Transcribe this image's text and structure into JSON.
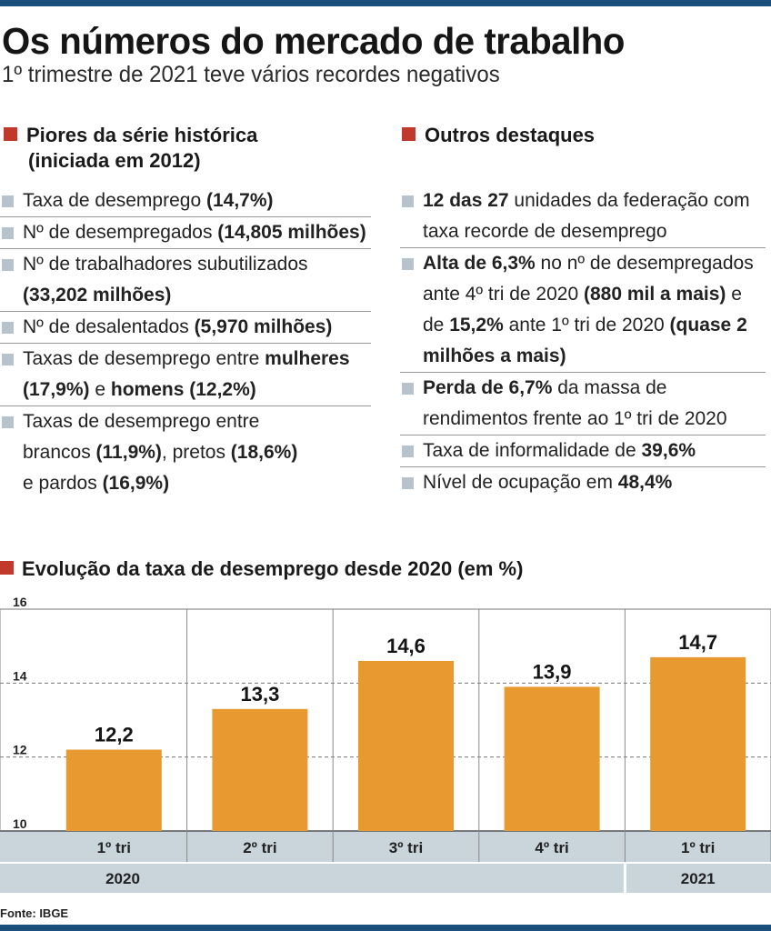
{
  "header": {
    "title": "Os números do mercado de trabalho",
    "subtitle": "1º trimestre de 2021 teve vários recordes negativos"
  },
  "left_section": {
    "heading_line1": "Piores da série histórica",
    "heading_line2": "(iniciada em 2012)",
    "items": [
      [
        {
          "t": "Taxa de desemprego "
        },
        {
          "t": "(14,7%)",
          "b": true
        }
      ],
      [
        {
          "t": "Nº de desempregados "
        },
        {
          "t": "(14,805 milhões)",
          "b": true
        }
      ],
      [
        {
          "t": "Nº de trabalhadores subutilizados\n"
        },
        {
          "t": "(33,202 milhões)",
          "b": true
        }
      ],
      [
        {
          "t": "Nº de desalentados "
        },
        {
          "t": "(5,970 milhões)",
          "b": true
        }
      ],
      [
        {
          "t": "Taxas de desemprego entre "
        },
        {
          "t": "mulheres",
          "b": true
        },
        {
          "t": "\n"
        },
        {
          "t": "(17,9%)",
          "b": true
        },
        {
          "t": " e "
        },
        {
          "t": "homens (12,2%)",
          "b": true
        }
      ],
      [
        {
          "t": "Taxas de desemprego entre\nbrancos "
        },
        {
          "t": "(11,9%)",
          "b": true
        },
        {
          "t": ", pretos "
        },
        {
          "t": "(18,6%)",
          "b": true
        },
        {
          "t": "\ne pardos "
        },
        {
          "t": "(16,9%)",
          "b": true
        }
      ]
    ]
  },
  "right_section": {
    "heading": "Outros destaques",
    "items": [
      [
        {
          "t": "12 das 27",
          "b": true
        },
        {
          "t": " unidades da federação com\ntaxa recorde de desemprego"
        }
      ],
      [
        {
          "t": "Alta de 6,3%",
          "b": true
        },
        {
          "t": " no nº de desempregados\nante 4º tri de 2020 "
        },
        {
          "t": "(880 mil a mais)",
          "b": true
        },
        {
          "t": " e\nde "
        },
        {
          "t": "15,2%",
          "b": true
        },
        {
          "t": " ante 1º tri de 2020 "
        },
        {
          "t": "(quase 2\nmilhões a mais)",
          "b": true
        }
      ],
      [
        {
          "t": "Perda de 6,7%",
          "b": true
        },
        {
          "t": " da massa de\nrendimentos frente ao 1º tri de 2020"
        }
      ],
      [
        {
          "t": "Taxa de informalidade de "
        },
        {
          "t": "39,6%",
          "b": true
        }
      ],
      [
        {
          "t": "Nível de ocupação em "
        },
        {
          "t": "48,4%",
          "b": true
        }
      ]
    ]
  },
  "chart_title": "Evolução da taxa de desemprego desde 2020 (em %)",
  "chart_data": {
    "type": "bar",
    "categories": [
      "1º tri",
      "2º tri",
      "3º tri",
      "4º tri",
      "1º tri"
    ],
    "values": [
      12.2,
      13.3,
      14.6,
      13.9,
      14.7
    ],
    "value_labels": [
      "12,2",
      "13,3",
      "14,6",
      "13,9",
      "14,7"
    ],
    "groups": [
      {
        "label": "2020",
        "span": 4
      },
      {
        "label": "2021",
        "span": 1
      }
    ],
    "y_ticks": [
      10,
      12,
      14,
      16
    ],
    "ylim": [
      10,
      16
    ],
    "title": "Evolução da taxa de desemprego desde 2020 (em %)",
    "bar_color": "#e89a30",
    "grid": true
  },
  "source": "Fonte: IBGE",
  "colors": {
    "rule": "#1b4f7c",
    "accent_square": "#c0392b",
    "bullet": "#b7c3cc",
    "bar": "#e89a30",
    "axis_band": "#c9d4db"
  }
}
